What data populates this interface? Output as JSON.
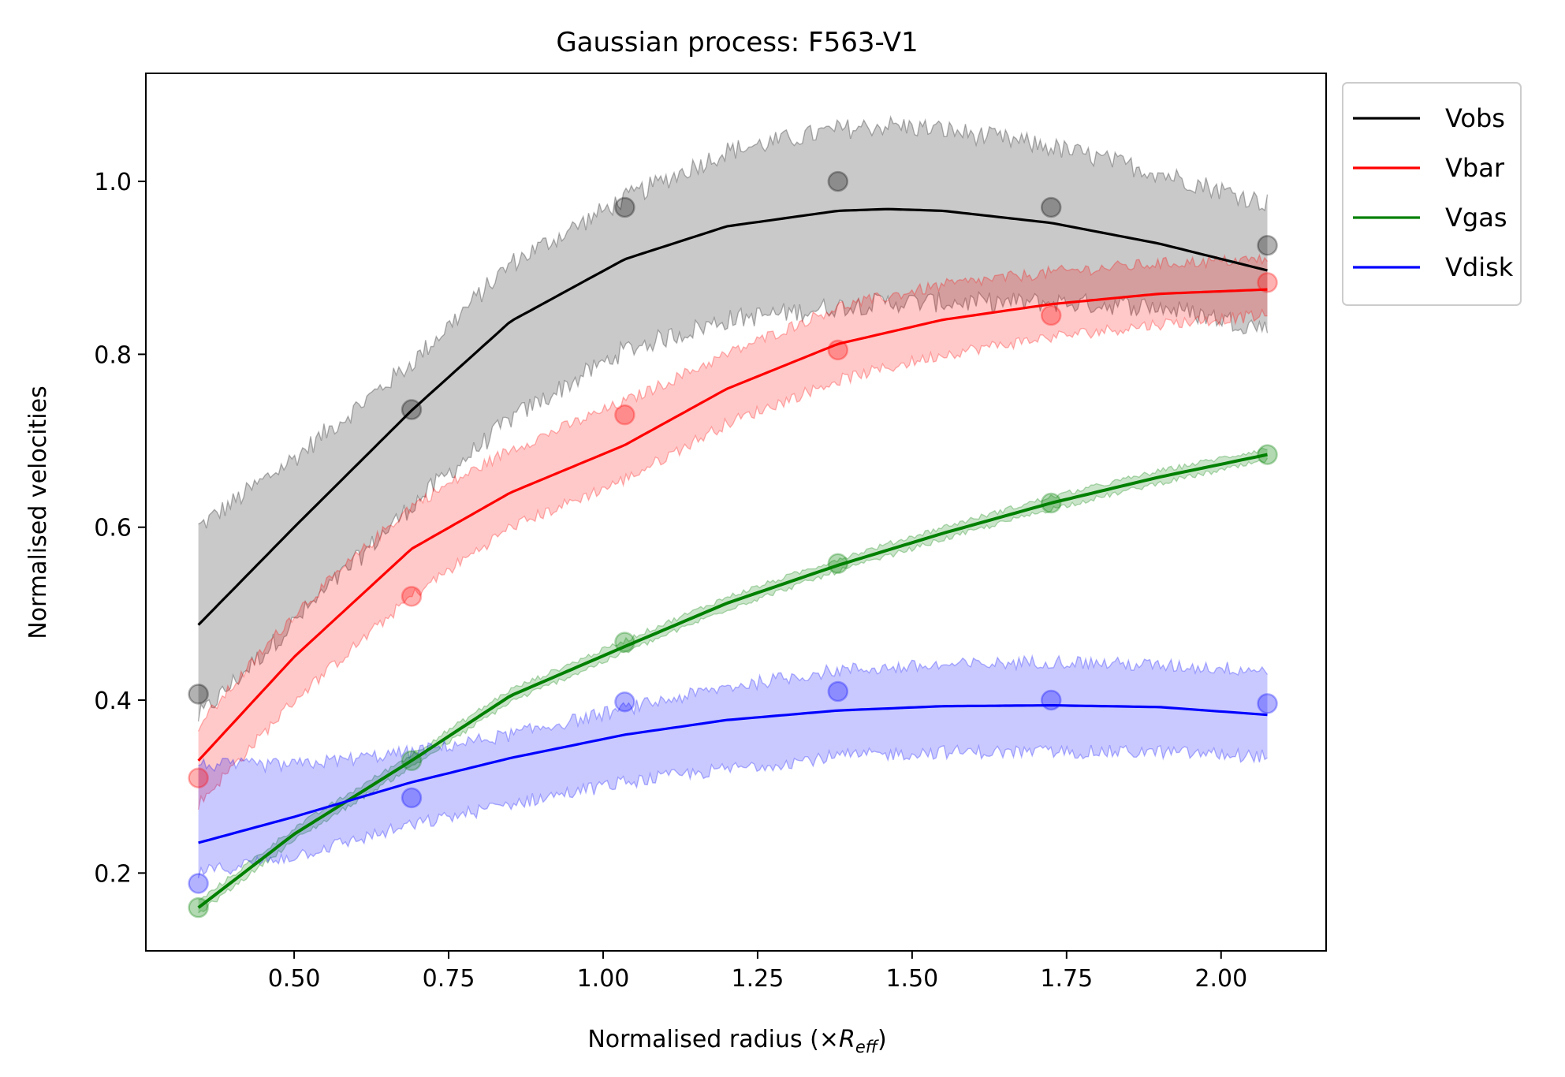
{
  "chart_data": {
    "type": "line",
    "title": "Gaussian process: F563-V1",
    "xlabel": "Normalised radius (×",
    "xlabel_sub_main": "R",
    "xlabel_sub": "eff",
    "xlabel_close": ")",
    "ylabel": "Normalised velocities",
    "xlim": [
      0.26,
      2.17
    ],
    "ylim": [
      0.11,
      1.125
    ],
    "x_ticks": [
      0.5,
      0.75,
      1.0,
      1.25,
      1.5,
      1.75,
      2.0
    ],
    "x_tick_labels": [
      "0.50",
      "0.75",
      "1.00",
      "1.25",
      "1.50",
      "1.75",
      "2.00"
    ],
    "y_ticks": [
      0.2,
      0.4,
      0.6,
      0.8,
      1.0
    ],
    "y_tick_labels": [
      "0.2",
      "0.4",
      "0.6",
      "0.8",
      "1.0"
    ],
    "legend_position": "outside-top-right",
    "x_range": [
      0.345,
      2.075
    ],
    "series": [
      {
        "name": "Vobs",
        "color": "#000000",
        "points_x": [
          0.345,
          0.69,
          1.035,
          1.38,
          1.725,
          2.075
        ],
        "points_y": [
          0.407,
          0.736,
          0.97,
          1.0,
          0.97,
          0.926
        ],
        "mean_x": [
          0.345,
          0.5,
          0.69,
          0.85,
          1.035,
          1.2,
          1.38,
          1.46,
          1.55,
          1.725,
          1.9,
          2.075
        ],
        "mean_y": [
          0.487,
          0.6,
          0.735,
          0.838,
          0.91,
          0.948,
          0.966,
          0.968,
          0.966,
          0.952,
          0.928,
          0.897
        ],
        "band_lower": [
          0.38,
          0.49,
          0.625,
          0.725,
          0.805,
          0.84,
          0.855,
          0.86,
          0.86,
          0.86,
          0.855,
          0.83
        ],
        "band_upper": [
          0.6,
          0.68,
          0.79,
          0.905,
          0.98,
          1.035,
          1.06,
          1.065,
          1.06,
          1.04,
          1.01,
          0.975
        ],
        "band_noise": 0.012
      },
      {
        "name": "Vbar",
        "color": "#ff0000",
        "points_x": [
          0.345,
          0.69,
          1.035,
          1.38,
          1.725,
          2.075
        ],
        "points_y": [
          0.31,
          0.52,
          0.73,
          0.805,
          0.845,
          0.883
        ],
        "mean_x": [
          0.345,
          0.5,
          0.69,
          0.85,
          1.035,
          1.2,
          1.38,
          1.55,
          1.725,
          1.9,
          2.075
        ],
        "mean_y": [
          0.33,
          0.45,
          0.575,
          0.64,
          0.695,
          0.76,
          0.812,
          0.84,
          0.858,
          0.87,
          0.875
        ],
        "band_lower": [
          0.28,
          0.4,
          0.52,
          0.6,
          0.655,
          0.72,
          0.77,
          0.8,
          0.82,
          0.835,
          0.845
        ],
        "band_upper": [
          0.37,
          0.5,
          0.625,
          0.69,
          0.745,
          0.8,
          0.855,
          0.88,
          0.895,
          0.905,
          0.91
        ],
        "band_noise": 0.007
      },
      {
        "name": "Vgas",
        "color": "#008000",
        "points_x": [
          0.345,
          0.69,
          1.035,
          1.38,
          1.725,
          2.075
        ],
        "points_y": [
          0.16,
          0.33,
          0.467,
          0.558,
          0.628,
          0.684
        ],
        "mean_x": [
          0.345,
          0.5,
          0.69,
          0.85,
          1.035,
          1.2,
          1.38,
          1.55,
          1.725,
          1.9,
          2.075
        ],
        "mean_y": [
          0.16,
          0.245,
          0.33,
          0.405,
          0.462,
          0.512,
          0.556,
          0.593,
          0.628,
          0.658,
          0.684
        ],
        "band_lower": [
          0.153,
          0.238,
          0.323,
          0.398,
          0.455,
          0.505,
          0.549,
          0.586,
          0.621,
          0.651,
          0.677
        ],
        "band_upper": [
          0.167,
          0.252,
          0.337,
          0.412,
          0.469,
          0.519,
          0.563,
          0.6,
          0.635,
          0.665,
          0.691
        ],
        "band_noise": 0.003
      },
      {
        "name": "Vdisk",
        "color": "#0000ff",
        "points_x": [
          0.345,
          0.69,
          1.035,
          1.38,
          1.725,
          2.075
        ],
        "points_y": [
          0.188,
          0.287,
          0.398,
          0.41,
          0.4,
          0.396
        ],
        "mean_x": [
          0.345,
          0.5,
          0.69,
          0.85,
          1.035,
          1.2,
          1.38,
          1.55,
          1.725,
          1.9,
          2.075
        ],
        "mean_y": [
          0.235,
          0.265,
          0.305,
          0.333,
          0.36,
          0.377,
          0.388,
          0.393,
          0.394,
          0.392,
          0.383
        ],
        "band_lower": [
          0.2,
          0.22,
          0.255,
          0.28,
          0.305,
          0.32,
          0.335,
          0.34,
          0.34,
          0.34,
          0.335
        ],
        "band_upper": [
          0.325,
          0.325,
          0.34,
          0.36,
          0.39,
          0.415,
          0.435,
          0.44,
          0.445,
          0.44,
          0.435
        ],
        "band_noise": 0.008
      }
    ]
  }
}
